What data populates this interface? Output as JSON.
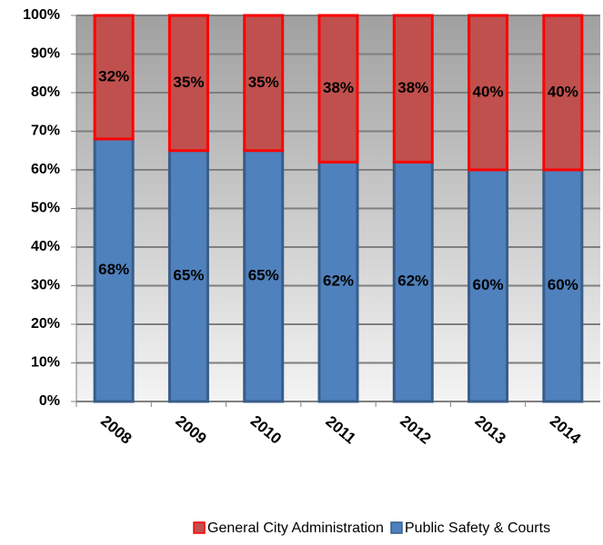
{
  "chart_data": {
    "type": "stacked_bar_100",
    "categories": [
      "2008",
      "2009",
      "2010",
      "2011",
      "2012",
      "2013",
      "2014"
    ],
    "series": [
      {
        "name": "General City Administration",
        "color": "#c0504d",
        "border": "#ff0000",
        "values": [
          32,
          35,
          35,
          38,
          38,
          40,
          40
        ],
        "value_labels": [
          "32%",
          "35%",
          "35%",
          "38%",
          "38%",
          "40%",
          "40%"
        ]
      },
      {
        "name": "Public Safety & Courts",
        "color": "#4f81bd",
        "border": "#385d8a",
        "values": [
          68,
          65,
          65,
          62,
          62,
          60,
          60
        ],
        "value_labels": [
          "68%",
          "65%",
          "65%",
          "62%",
          "62%",
          "60%",
          "60%"
        ]
      }
    ],
    "ylim": [
      0,
      100
    ],
    "yticks": [
      {
        "value": 0,
        "label": "0%"
      },
      {
        "value": 10,
        "label": "10%"
      },
      {
        "value": 20,
        "label": "20%"
      },
      {
        "value": 30,
        "label": "30%"
      },
      {
        "value": 40,
        "label": "40%"
      },
      {
        "value": 50,
        "label": "50%"
      },
      {
        "value": 60,
        "label": "60%"
      },
      {
        "value": 70,
        "label": "70%"
      },
      {
        "value": 80,
        "label": "80%"
      },
      {
        "value": 90,
        "label": "90%"
      },
      {
        "value": 100,
        "label": "100%"
      }
    ],
    "grid": true,
    "legend": "bottom"
  }
}
